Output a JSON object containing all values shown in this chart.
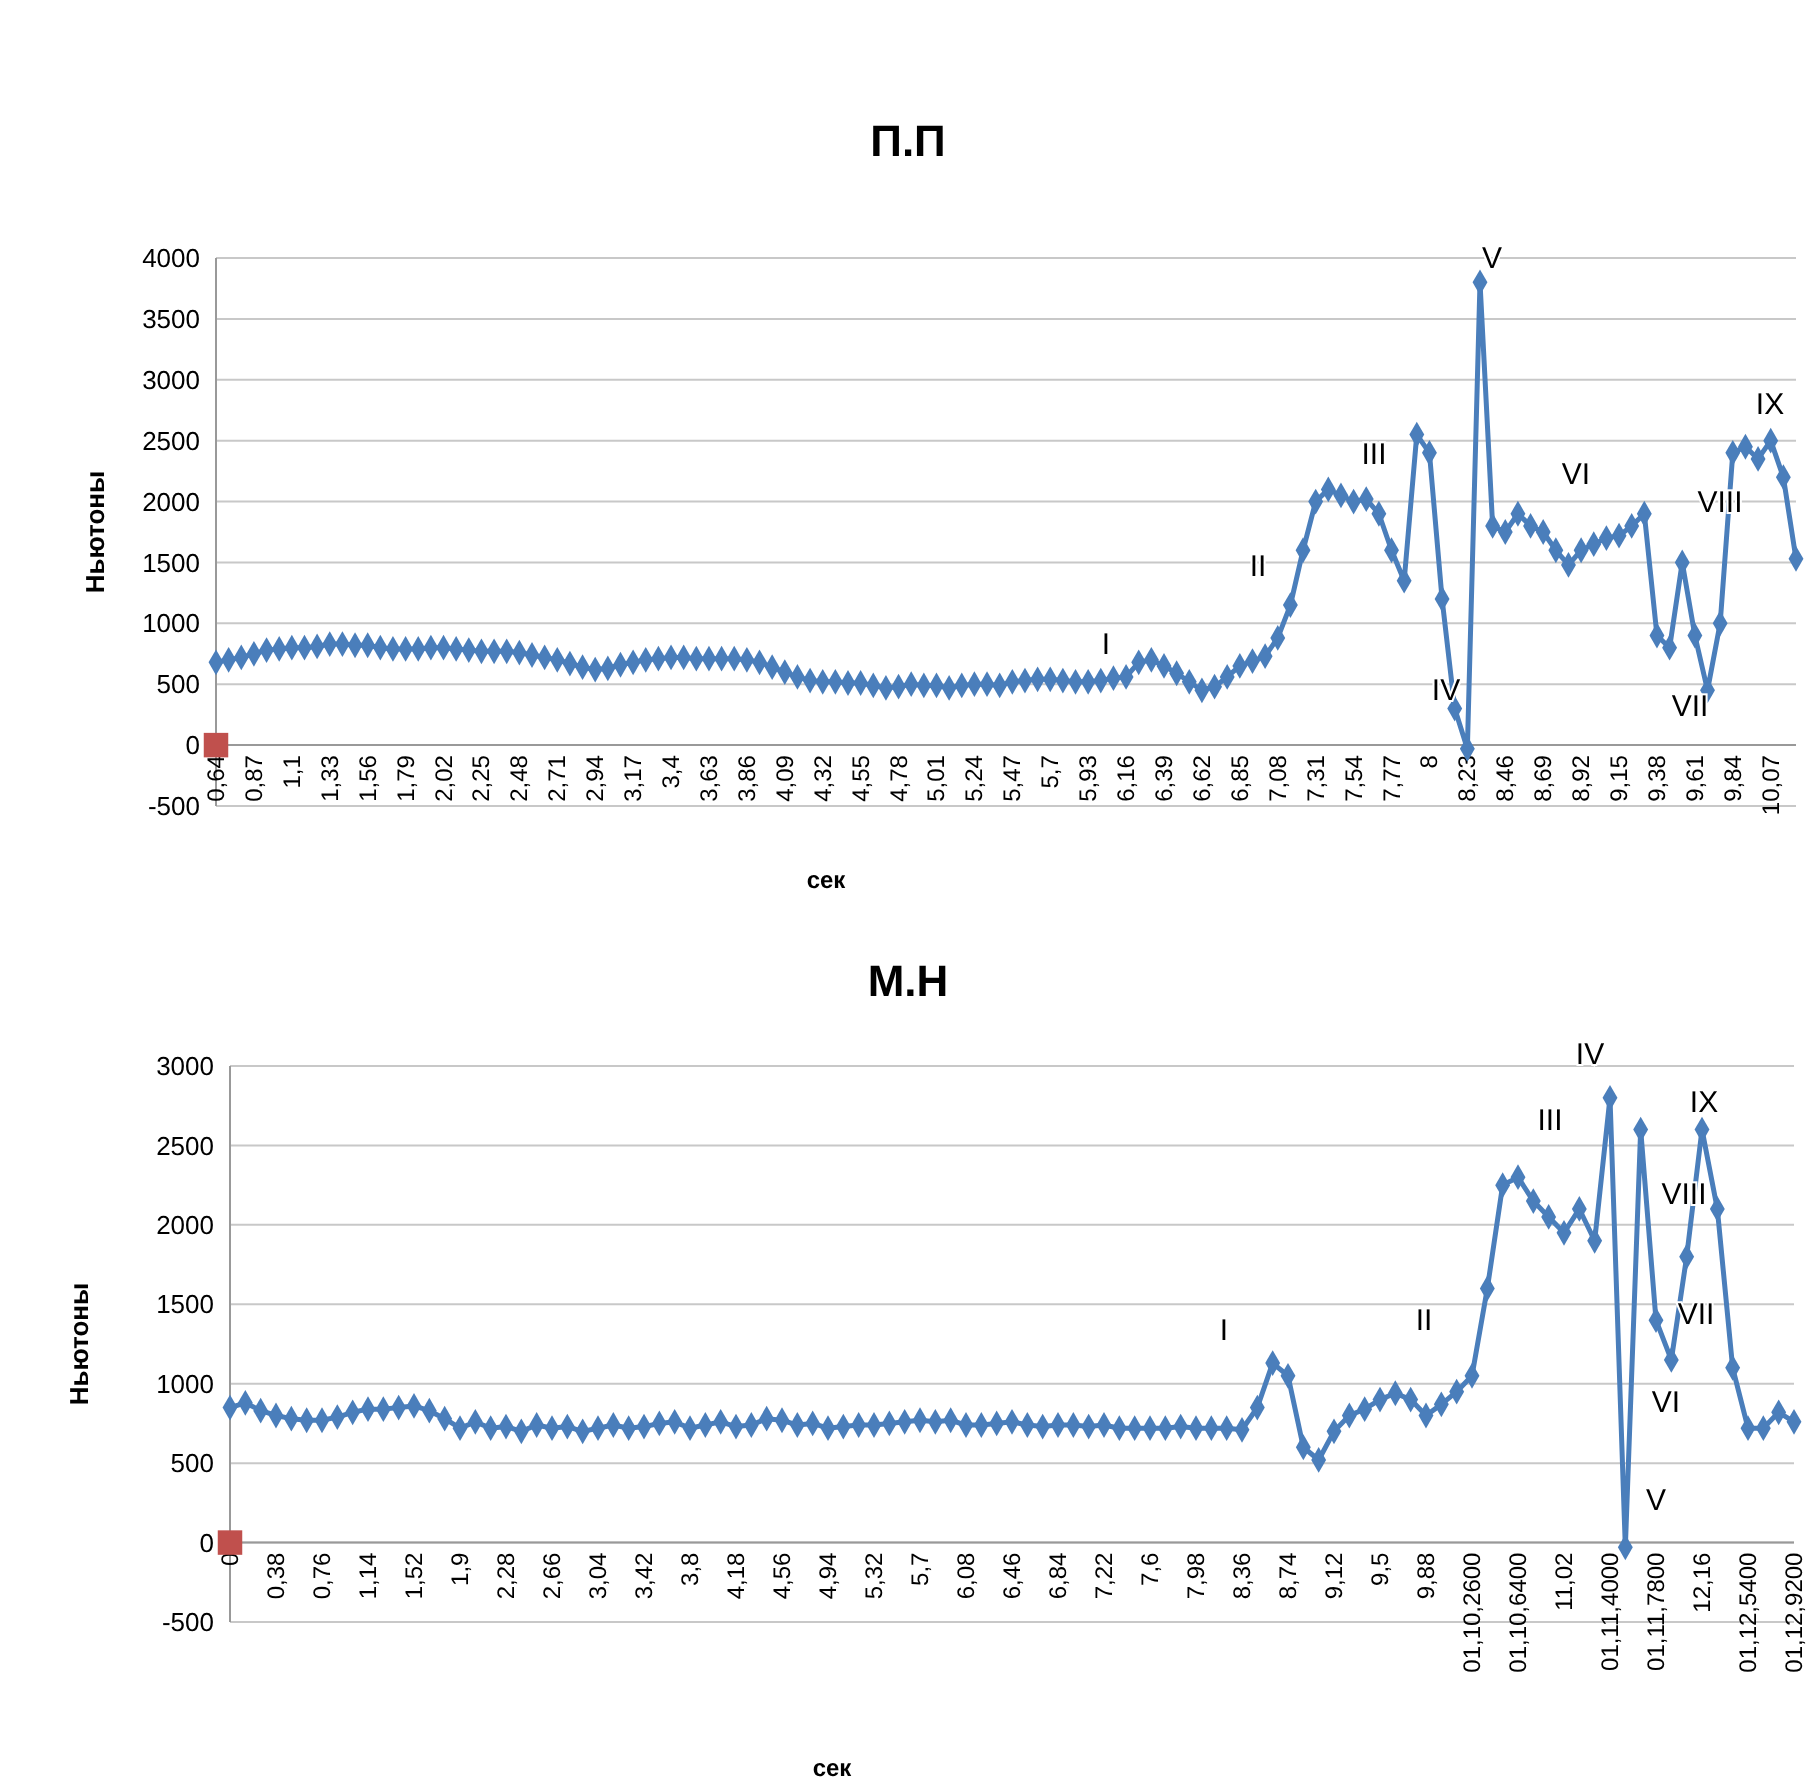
{
  "chart_data": [
    {
      "type": "line",
      "title": "П.П",
      "xlabel": "сек",
      "ylabel": "Ньютоны",
      "ylim": [
        -500,
        4000
      ],
      "yticks": [
        -500,
        0,
        500,
        1000,
        1500,
        2000,
        2500,
        3000,
        3500,
        4000
      ],
      "grid": "y",
      "marker": "diamond",
      "categories": [
        "0,64",
        null,
        null,
        "0,87",
        null,
        null,
        "1,1",
        null,
        null,
        "1,33",
        null,
        null,
        "1,56",
        null,
        null,
        "1,79",
        null,
        null,
        "2,02",
        null,
        null,
        "2,25",
        null,
        null,
        "2,48",
        null,
        null,
        "2,71",
        null,
        null,
        "2,94",
        null,
        null,
        "3,17",
        null,
        null,
        "3,4",
        null,
        null,
        "3,63",
        null,
        null,
        "3,86",
        null,
        null,
        "4,09",
        null,
        null,
        "4,32",
        null,
        null,
        "4,55",
        null,
        null,
        "4,78",
        null,
        null,
        "5,01",
        null,
        null,
        "5,24",
        null,
        null,
        "5,47",
        null,
        null,
        "5,7",
        null,
        null,
        "5,93",
        null,
        null,
        "6,16",
        null,
        null,
        "6,39",
        null,
        null,
        "6,62",
        null,
        null,
        "6,85",
        null,
        null,
        "7,08",
        null,
        null,
        "7,31",
        null,
        null,
        "7,54",
        null,
        null,
        "7,77",
        null,
        null,
        "8",
        null,
        null,
        "8,23",
        null,
        null,
        "8,46",
        null,
        null,
        "8,69",
        null,
        null,
        "8,92",
        null,
        null,
        "9,15",
        null,
        null,
        "9,38",
        null,
        null,
        "9,61",
        null,
        null,
        "9,84",
        null,
        null,
        "10,07",
        null,
        null
      ],
      "series": [
        {
          "color": "#4a7ebb",
          "values": [
            680,
            700,
            720,
            750,
            780,
            790,
            800,
            800,
            810,
            830,
            830,
            820,
            820,
            800,
            790,
            790,
            790,
            800,
            800,
            790,
            780,
            770,
            770,
            770,
            760,
            740,
            720,
            700,
            670,
            640,
            620,
            630,
            660,
            680,
            700,
            710,
            720,
            720,
            710,
            710,
            710,
            710,
            700,
            680,
            640,
            600,
            560,
            530,
            520,
            520,
            510,
            510,
            490,
            470,
            480,
            500,
            490,
            490,
            470,
            490,
            500,
            500,
            490,
            520,
            530,
            540,
            540,
            530,
            520,
            520,
            530,
            550,
            560,
            680,
            700,
            650,
            590,
            520,
            450,
            480,
            560,
            650,
            690,
            730,
            880,
            1150,
            1600,
            2000,
            2100,
            2050,
            2000,
            2020,
            1900,
            1600,
            1350,
            2550,
            2400,
            1200,
            300,
            -30,
            3800,
            1800,
            1750,
            1900,
            1800,
            1750,
            1600,
            1480,
            1600,
            1650,
            1700,
            1720,
            1800,
            1900,
            900,
            800,
            1500,
            900,
            450,
            1000,
            2400,
            2450,
            2350,
            2500,
            2200,
            1530
          ]
        },
        {
          "type": "scatter",
          "color": "#c0504d",
          "marker": "square",
          "x": [
            "0,64"
          ],
          "values": [
            0
          ]
        }
      ],
      "annotations": [
        "I",
        "II",
        "III",
        "IV",
        "V",
        "VI",
        "VII",
        "VIII",
        "IX"
      ]
    },
    {
      "type": "line",
      "title": "М.Н",
      "xlabel": "сек",
      "ylabel": "Ньютоны",
      "ylim": [
        -500,
        3000
      ],
      "yticks": [
        -500,
        0,
        500,
        1000,
        1500,
        2000,
        2500,
        3000
      ],
      "grid": "y",
      "marker": "diamond",
      "categories": [
        "0",
        null,
        null,
        "0,38",
        null,
        null,
        "0,76",
        null,
        null,
        "1,14",
        null,
        null,
        "1,52",
        null,
        null,
        "1,9",
        null,
        null,
        "2,28",
        null,
        null,
        "2,66",
        null,
        null,
        "3,04",
        null,
        null,
        "3,42",
        null,
        null,
        "3,8",
        null,
        null,
        "4,18",
        null,
        null,
        "4,56",
        null,
        null,
        "4,94",
        null,
        null,
        "5,32",
        null,
        null,
        "5,7",
        null,
        null,
        "6,08",
        null,
        null,
        "6,46",
        null,
        null,
        "6,84",
        null,
        null,
        "7,22",
        null,
        null,
        "7,6",
        null,
        null,
        "7,98",
        null,
        null,
        "8,36",
        null,
        null,
        "8,74",
        null,
        null,
        "9,12",
        null,
        null,
        "9,5",
        null,
        null,
        "9,88",
        null,
        null,
        "01,10,2600",
        null,
        null,
        "01,10,6400",
        null,
        null,
        "11,02",
        null,
        null,
        "01,11,4000",
        null,
        null,
        "01,11,7800",
        null,
        null,
        "12,16",
        null,
        null,
        "01,12,5400",
        null,
        null,
        "01,12,9200"
      ],
      "series": [
        {
          "color": "#4a7ebb",
          "values": [
            850,
            880,
            830,
            800,
            780,
            770,
            770,
            790,
            820,
            840,
            840,
            850,
            860,
            830,
            780,
            720,
            760,
            720,
            730,
            700,
            740,
            720,
            730,
            700,
            720,
            740,
            720,
            730,
            750,
            760,
            720,
            740,
            760,
            730,
            740,
            780,
            770,
            740,
            750,
            720,
            730,
            740,
            740,
            750,
            760,
            770,
            760,
            770,
            740,
            740,
            750,
            760,
            740,
            730,
            740,
            740,
            730,
            740,
            720,
            720,
            720,
            720,
            730,
            720,
            720,
            720,
            710,
            850,
            1130,
            1050,
            600,
            520,
            700,
            800,
            840,
            900,
            940,
            900,
            800,
            870,
            950,
            1050,
            1600,
            2250,
            2300,
            2150,
            2050,
            1950,
            2100,
            1900,
            2800,
            -30,
            2600,
            1400,
            1150,
            1800,
            2600,
            2100,
            1100,
            720,
            720,
            820,
            760
          ]
        },
        {
          "type": "scatter",
          "color": "#c0504d",
          "marker": "square",
          "x": [
            "0"
          ],
          "values": [
            0
          ]
        }
      ],
      "annotations": [
        "I",
        "II",
        "III",
        "IV",
        "V",
        "VI",
        "VII",
        "VIII",
        "IX"
      ]
    }
  ]
}
